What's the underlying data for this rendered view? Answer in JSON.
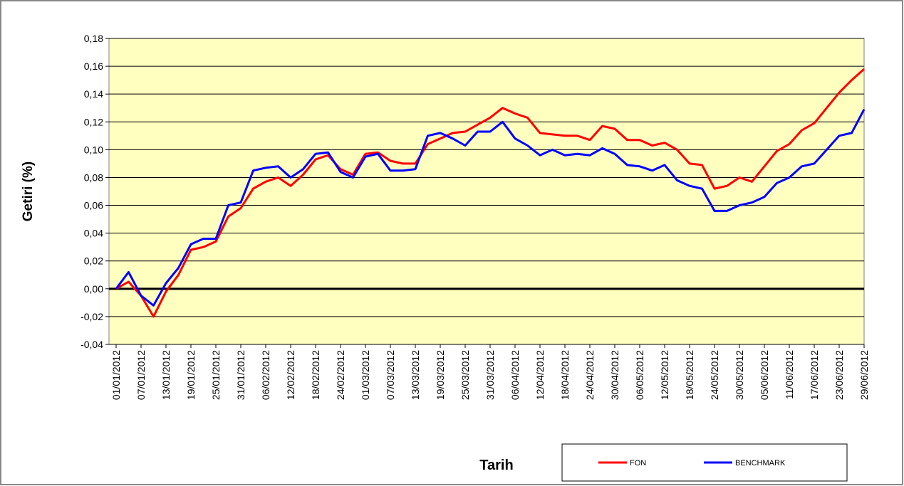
{
  "chart_data": {
    "type": "line",
    "y_label": "Getiri (%)",
    "x_label": "Tarih",
    "categories": [
      "01/01/2012",
      null,
      "07/01/2012",
      null,
      "13/01/2012",
      null,
      "19/01/2012",
      null,
      "25/01/2012",
      null,
      "31/01/2012",
      null,
      "06/02/2012",
      null,
      "12/02/2012",
      null,
      "18/02/2012",
      null,
      "24/02/2012",
      null,
      "01/03/2012",
      null,
      "07/03/2012",
      null,
      "13/03/2012",
      null,
      "19/03/2012",
      null,
      "25/03/2012",
      null,
      "31/03/2012",
      null,
      "06/04/2012",
      null,
      "12/04/2012",
      null,
      "18/04/2012",
      null,
      "24/04/2012",
      null,
      "30/04/2012",
      null,
      "06/05/2012",
      null,
      "12/05/2012",
      null,
      "18/05/2012",
      null,
      "24/05/2012",
      null,
      "30/05/2012",
      null,
      "05/06/2012",
      null,
      "11/06/2012",
      null,
      "17/06/2012",
      null,
      "23/06/2012",
      null,
      "29/06/2012"
    ],
    "series": [
      {
        "name": "FON",
        "color": "#ff0000",
        "values": [
          0,
          0.005,
          -0.005,
          -0.02,
          -0.002,
          0.01,
          0.028,
          0.03,
          0.034,
          0.052,
          0.058,
          0.072,
          0.077,
          0.08,
          0.074,
          0.082,
          0.093,
          0.096,
          0.086,
          0.082,
          0.097,
          0.098,
          0.092,
          0.09,
          0.09,
          0.104,
          0.108,
          0.112,
          0.113,
          0.118,
          0.123,
          0.13,
          0.126,
          0.123,
          0.112,
          0.111,
          0.11,
          0.11,
          0.107,
          0.117,
          0.115,
          0.107,
          0.107,
          0.103,
          0.105,
          0.1,
          0.09,
          0.089,
          0.072,
          0.074,
          0.08,
          0.077,
          0.088,
          0.099,
          0.104,
          0.114,
          0.119,
          0.13,
          0.141,
          0.15,
          0.158
        ]
      },
      {
        "name": "BENCHMARK",
        "color": "#0000ff",
        "values": [
          0,
          0.012,
          -0.005,
          -0.012,
          0.004,
          0.015,
          0.032,
          0.036,
          0.036,
          0.06,
          0.062,
          0.085,
          0.087,
          0.088,
          0.08,
          0.086,
          0.097,
          0.098,
          0.084,
          0.08,
          0.095,
          0.097,
          0.085,
          0.085,
          0.086,
          0.11,
          0.112,
          0.108,
          0.103,
          0.113,
          0.113,
          0.12,
          0.108,
          0.103,
          0.096,
          0.1,
          0.096,
          0.097,
          0.096,
          0.101,
          0.097,
          0.089,
          0.088,
          0.085,
          0.089,
          0.078,
          0.074,
          0.072,
          0.056,
          0.056,
          0.06,
          0.062,
          0.066,
          0.076,
          0.08,
          0.088,
          0.09,
          0.1,
          0.11,
          0.112,
          0.129
        ]
      }
    ],
    "ylim": [
      -0.04,
      0.18
    ],
    "yticks": [
      {
        "value": -0.04,
        "label": "-0,04"
      },
      {
        "value": -0.02,
        "label": "-0,02"
      },
      {
        "value": 0,
        "label": "0,00"
      },
      {
        "value": 0.02,
        "label": "0,02"
      },
      {
        "value": 0.04,
        "label": "0,04"
      },
      {
        "value": 0.06,
        "label": "0,06"
      },
      {
        "value": 0.08,
        "label": "0,08"
      },
      {
        "value": 0.1,
        "label": "0,10"
      },
      {
        "value": 0.12,
        "label": "0,12"
      },
      {
        "value": 0.14,
        "label": "0,14"
      },
      {
        "value": 0.16,
        "label": "0,16"
      },
      {
        "value": 0.18,
        "label": "0,18"
      }
    ],
    "grid": true,
    "plot_background": "#ffffc0"
  }
}
